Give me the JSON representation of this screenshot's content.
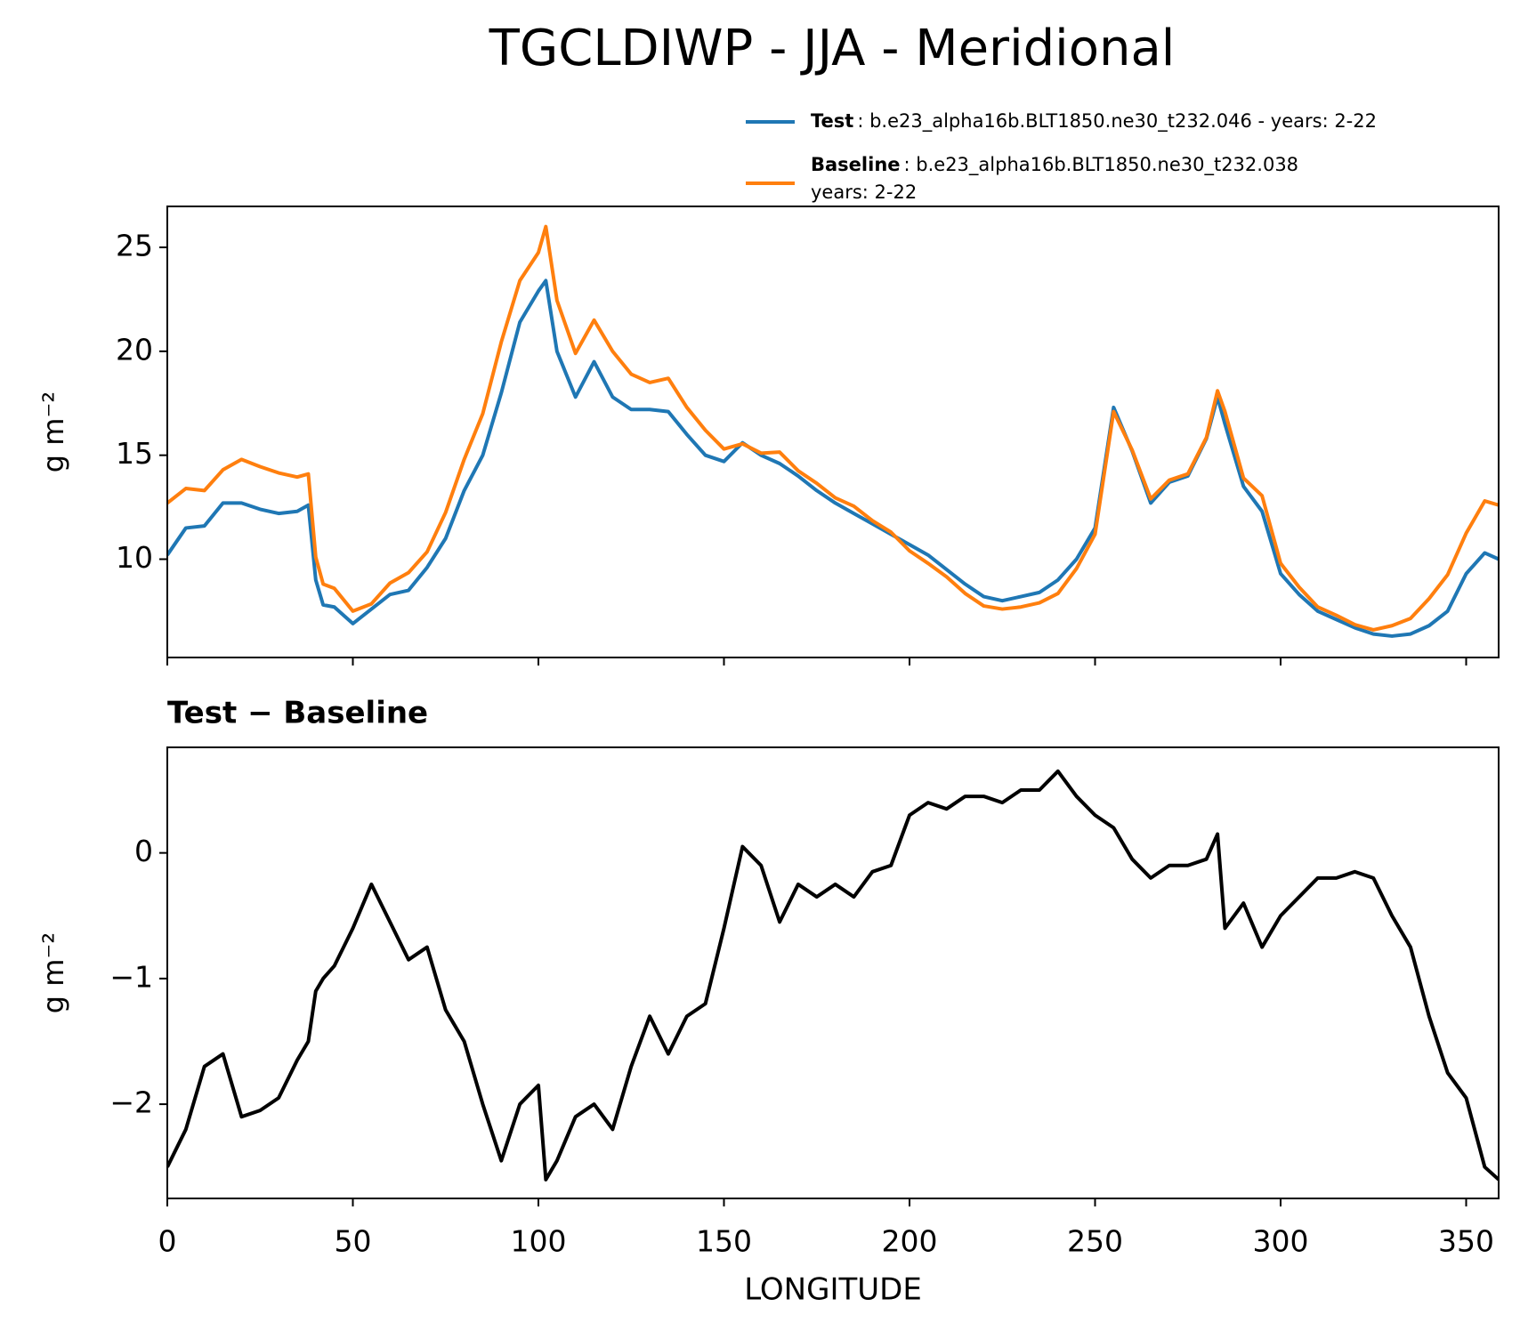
{
  "chart_data": [
    {
      "type": "line",
      "title": "TGCLDIWP - JJA - Meridional",
      "ylabel": "g m⁻²",
      "x": [
        0,
        5,
        10,
        15,
        20,
        25,
        30,
        35,
        38,
        40,
        42,
        45,
        50,
        55,
        60,
        65,
        70,
        75,
        80,
        85,
        90,
        95,
        100,
        102,
        105,
        110,
        115,
        120,
        125,
        130,
        135,
        140,
        145,
        150,
        155,
        160,
        165,
        170,
        175,
        180,
        185,
        190,
        195,
        200,
        205,
        210,
        215,
        220,
        225,
        230,
        235,
        240,
        245,
        250,
        255,
        260,
        265,
        270,
        275,
        280,
        283,
        285,
        290,
        295,
        300,
        305,
        310,
        315,
        320,
        325,
        330,
        335,
        340,
        345,
        350,
        355,
        358.75
      ],
      "series": [
        {
          "name": "Test",
          "description": [
            ": b.e23_alpha16b.BLT1850.ne30_t232.046 - years: 2-22"
          ],
          "color": "#1f77b4",
          "values": [
            10.2,
            11.5,
            11.6,
            12.7,
            12.7,
            12.4,
            12.2,
            12.3,
            12.6,
            9.0,
            7.8,
            7.7,
            6.9,
            7.6,
            8.3,
            8.5,
            9.6,
            11.0,
            13.3,
            15.0,
            18.0,
            21.4,
            22.9,
            23.4,
            20.0,
            17.8,
            19.5,
            17.8,
            17.2,
            17.2,
            17.1,
            16.0,
            15.0,
            14.7,
            15.6,
            15.0,
            14.6,
            14.0,
            13.3,
            12.7,
            12.2,
            11.7,
            11.2,
            10.7,
            10.2,
            9.5,
            8.8,
            8.2,
            8.0,
            8.2,
            8.4,
            9.0,
            10.0,
            11.5,
            17.3,
            15.2,
            12.7,
            13.7,
            14.0,
            15.8,
            17.8,
            16.5,
            13.5,
            12.3,
            9.3,
            8.3,
            7.5,
            7.1,
            6.7,
            6.4,
            6.3,
            6.4,
            6.8,
            7.5,
            9.3,
            10.3,
            10.0
          ]
        },
        {
          "name": "Baseline",
          "description": [
            ": b.e23_alpha16b.BLT1850.ne30_t232.038",
            "years: 2-22"
          ],
          "color": "#ff7f0e",
          "values": [
            12.7,
            13.4,
            13.3,
            14.3,
            14.8,
            14.45,
            14.15,
            13.95,
            14.1,
            10.1,
            8.8,
            8.6,
            7.5,
            7.85,
            8.85,
            9.35,
            10.35,
            12.25,
            14.8,
            17.0,
            20.45,
            23.4,
            24.75,
            26.0,
            22.45,
            19.9,
            21.5,
            20.0,
            18.9,
            18.5,
            18.7,
            17.3,
            16.2,
            15.3,
            15.55,
            15.1,
            15.15,
            14.25,
            13.65,
            12.95,
            12.55,
            11.85,
            11.3,
            10.4,
            9.8,
            9.15,
            8.35,
            7.75,
            7.6,
            7.7,
            7.9,
            8.35,
            9.55,
            11.2,
            17.1,
            15.25,
            12.9,
            13.8,
            14.1,
            15.85,
            18.1,
            17.1,
            13.9,
            13.05,
            9.8,
            8.65,
            7.7,
            7.3,
            6.85,
            6.6,
            6.8,
            7.15,
            8.1,
            9.25,
            11.25,
            12.8,
            12.6
          ]
        }
      ],
      "xlim": [
        0,
        358.75
      ],
      "xticks": [
        0,
        50,
        100,
        150,
        200,
        250,
        300,
        350
      ],
      "ylim": [
        5.27,
        26.97
      ],
      "yticks": [
        10,
        15,
        20,
        25
      ]
    },
    {
      "type": "line",
      "subtitle": "Test − Baseline",
      "xlabel": "LONGITUDE",
      "ylabel": "g m⁻²",
      "x": [
        0,
        5,
        10,
        15,
        20,
        25,
        30,
        35,
        38,
        40,
        42,
        45,
        50,
        55,
        60,
        65,
        70,
        75,
        80,
        85,
        90,
        95,
        100,
        102,
        105,
        110,
        115,
        120,
        125,
        130,
        135,
        140,
        145,
        150,
        155,
        160,
        165,
        170,
        175,
        180,
        185,
        190,
        195,
        200,
        205,
        210,
        215,
        220,
        225,
        230,
        235,
        240,
        245,
        250,
        255,
        260,
        265,
        270,
        275,
        280,
        283,
        285,
        290,
        295,
        300,
        305,
        310,
        315,
        320,
        325,
        330,
        335,
        340,
        345,
        350,
        355,
        358.75
      ],
      "series": [
        {
          "color": "#000000",
          "values": [
            -2.5,
            -2.2,
            -1.7,
            -1.6,
            -2.1,
            -2.05,
            -1.95,
            -1.65,
            -1.5,
            -1.1,
            -1.0,
            -0.9,
            -0.6,
            -0.25,
            -0.55,
            -0.85,
            -0.75,
            -1.25,
            -1.5,
            -2.0,
            -2.45,
            -2.0,
            -1.85,
            -2.6,
            -2.45,
            -2.1,
            -2.0,
            -2.2,
            -1.7,
            -1.3,
            -1.6,
            -1.3,
            -1.2,
            -0.6,
            0.05,
            -0.1,
            -0.55,
            -0.25,
            -0.35,
            -0.25,
            -0.35,
            -0.15,
            -0.1,
            0.3,
            0.4,
            0.35,
            0.45,
            0.45,
            0.4,
            0.5,
            0.5,
            0.65,
            0.45,
            0.3,
            0.2,
            -0.05,
            -0.2,
            -0.1,
            -0.1,
            -0.05,
            0.15,
            -0.6,
            -0.4,
            -0.75,
            -0.5,
            -0.35,
            -0.2,
            -0.2,
            -0.15,
            -0.2,
            -0.5,
            -0.75,
            -1.3,
            -1.75,
            -1.95,
            -2.5,
            -2.6
          ]
        }
      ],
      "xlim": [
        0,
        358.75
      ],
      "xticks": [
        0,
        50,
        100,
        150,
        200,
        250,
        300,
        350
      ],
      "ylim": [
        -2.75,
        0.84
      ],
      "yticks": [
        {
          "value": -2,
          "label": "−2"
        },
        {
          "value": -1,
          "label": "−1"
        },
        0
      ]
    }
  ]
}
